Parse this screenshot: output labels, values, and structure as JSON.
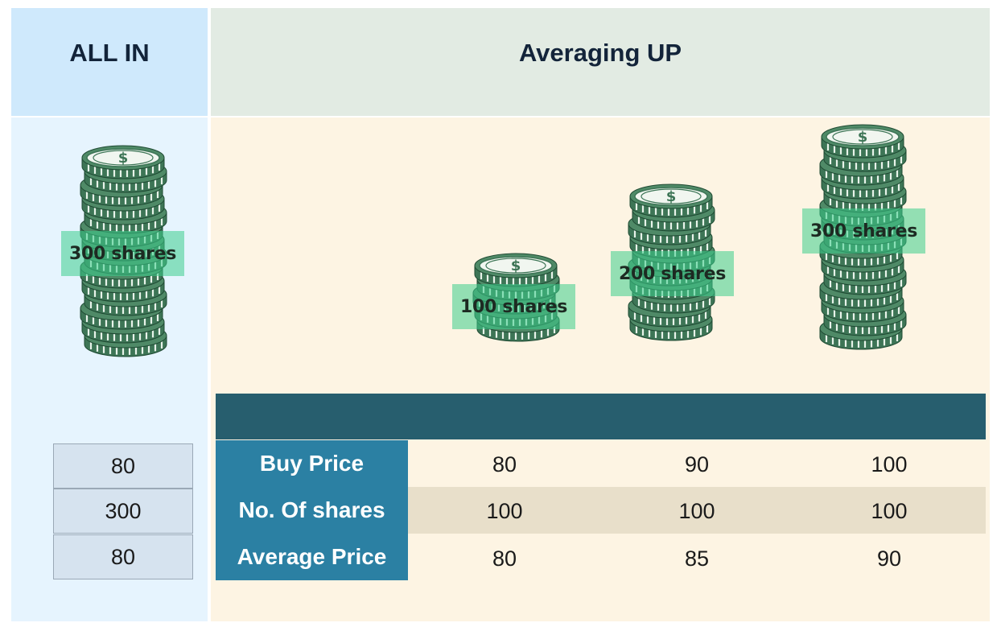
{
  "headers": {
    "all_in": "ALL IN",
    "averaging_up": "Averaging UP"
  },
  "all_in": {
    "stack_label": "300 shares",
    "values": [
      "80",
      "300",
      "80"
    ]
  },
  "averaging_up": {
    "stacks": [
      {
        "label": "100 shares"
      },
      {
        "label": "200 shares"
      },
      {
        "label": "300 shares"
      }
    ],
    "rows": [
      {
        "label": "Buy Price",
        "values": [
          "80",
          "90",
          "100"
        ]
      },
      {
        "label": "No. Of shares",
        "values": [
          "100",
          "100",
          "100"
        ]
      },
      {
        "label": "Average Price",
        "values": [
          "80",
          "85",
          "90"
        ]
      }
    ]
  },
  "icons": {
    "coin_stack": "dollar-coin-stack-icon"
  },
  "colors": {
    "coin": "#3d7556",
    "label_highlight": "#3ccd8c",
    "row_label_bg": "#2b80a3",
    "band": "#275e6e",
    "stripe": "#e8dfca"
  }
}
